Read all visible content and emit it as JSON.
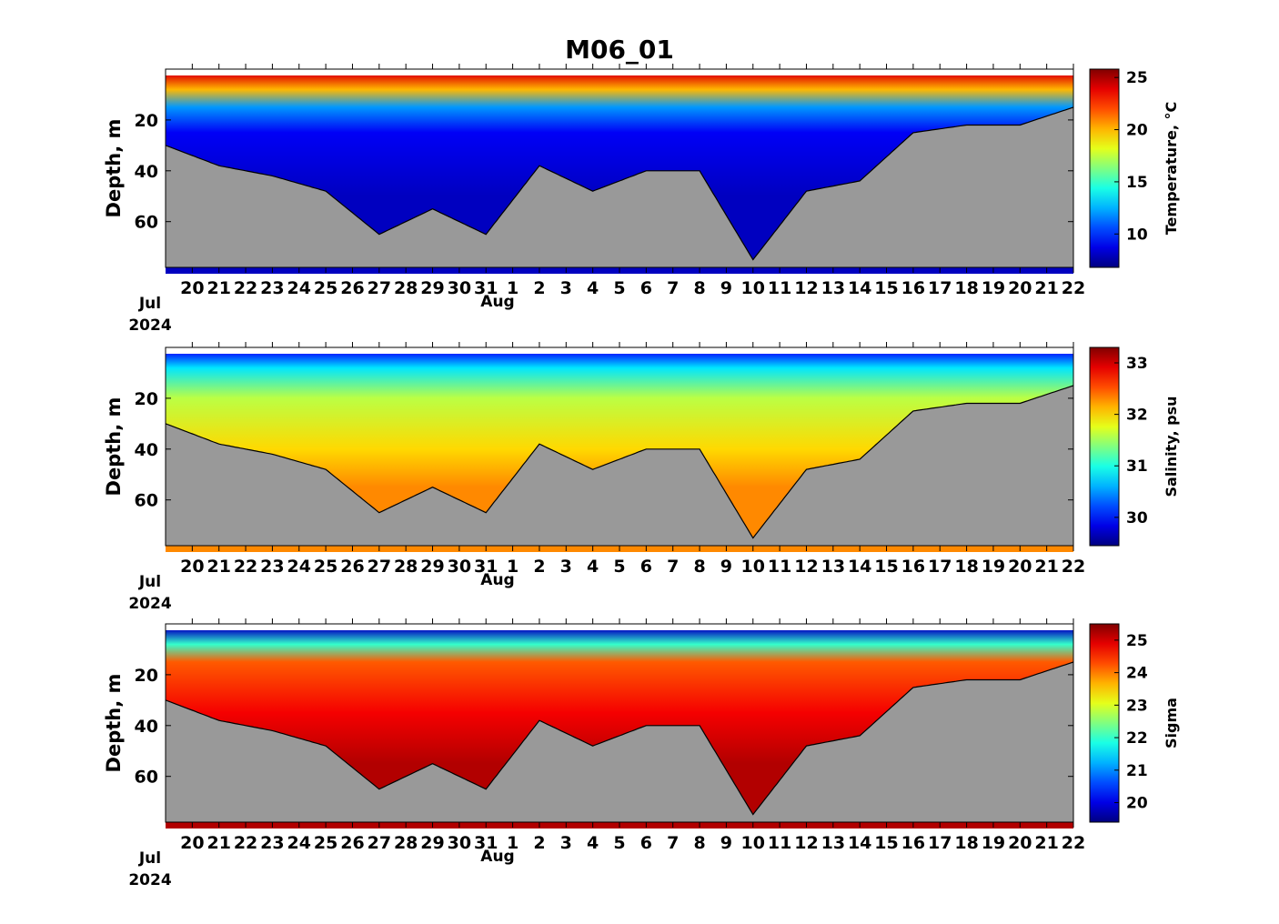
{
  "title": "M06_01",
  "x_tick_labels": [
    "20",
    "21",
    "22",
    "23",
    "24",
    "25",
    "26",
    "27",
    "28",
    "29",
    "30",
    "31",
    "1",
    "2",
    "3",
    "4",
    "5",
    "6",
    "7",
    "8",
    "9",
    "10",
    "11",
    "12",
    "13",
    "14",
    "15",
    "16",
    "17",
    "18",
    "19",
    "20",
    "21",
    "22"
  ],
  "month_labels": {
    "first": "Jul",
    "second": "Aug",
    "year": "2024"
  },
  "panels": [
    {
      "id": "temperature",
      "ylabel": "Depth, m",
      "cblabel": "Temperature, °C",
      "cb_ticks": [
        "25",
        "20",
        "15",
        "10"
      ]
    },
    {
      "id": "salinity",
      "ylabel": "Depth, m",
      "cblabel": "Salinity, psu",
      "cb_ticks": [
        "33",
        "32",
        "31",
        "30"
      ]
    },
    {
      "id": "sigma",
      "ylabel": "Depth, m",
      "cblabel": "Sigma",
      "cb_ticks": [
        "25",
        "24",
        "23",
        "22",
        "21",
        "20"
      ]
    }
  ],
  "chart_data": [
    {
      "type": "heatmap",
      "title": "M06_01",
      "variable": "Temperature",
      "ylabel": "Depth, m",
      "colorbar_label": "Temperature, °C",
      "colormap": "jet",
      "clim": [
        6.8,
        25.8
      ],
      "x_start": "Jul 19 2024",
      "x_end": "Aug 22 2024",
      "ylim": [
        78,
        0
      ],
      "y_ticks": [
        20,
        40,
        60
      ],
      "colorbar_ticks": [
        25,
        20,
        15,
        10
      ],
      "profile": [
        {
          "depth": 2,
          "value": 24
        },
        {
          "depth": 8,
          "value": 20
        },
        {
          "depth": 15,
          "value": 12
        },
        {
          "depth": 25,
          "value": 9
        },
        {
          "depth": 50,
          "value": 8
        }
      ],
      "bottom_depth": [
        {
          "date": "Jul 19",
          "depth": 30
        },
        {
          "date": "Jul 21",
          "depth": 38
        },
        {
          "date": "Jul 23",
          "depth": 42
        },
        {
          "date": "Jul 25",
          "depth": 48
        },
        {
          "date": "Jul 27",
          "depth": 65
        },
        {
          "date": "Jul 29",
          "depth": 55
        },
        {
          "date": "Jul 31",
          "depth": 65
        },
        {
          "date": "Aug 2",
          "depth": 38
        },
        {
          "date": "Aug 4",
          "depth": 48
        },
        {
          "date": "Aug 6",
          "depth": 40
        },
        {
          "date": "Aug 8",
          "depth": 40
        },
        {
          "date": "Aug 10",
          "depth": 75
        },
        {
          "date": "Aug 12",
          "depth": 48
        },
        {
          "date": "Aug 14",
          "depth": 44
        },
        {
          "date": "Aug 16",
          "depth": 25
        },
        {
          "date": "Aug 18",
          "depth": 22
        },
        {
          "date": "Aug 20",
          "depth": 22
        },
        {
          "date": "Aug 22",
          "depth": 15
        }
      ]
    },
    {
      "type": "heatmap",
      "variable": "Salinity",
      "ylabel": "Depth, m",
      "colorbar_label": "Salinity, psu",
      "colormap": "jet",
      "clim": [
        29.45,
        33.3
      ],
      "x_start": "Jul 19 2024",
      "x_end": "Aug 22 2024",
      "ylim": [
        78,
        0
      ],
      "y_ticks": [
        20,
        40,
        60
      ],
      "colorbar_ticks": [
        33,
        32,
        31,
        30
      ],
      "profile": [
        {
          "depth": 2,
          "value": 30.0
        },
        {
          "depth": 8,
          "value": 30.8
        },
        {
          "depth": 20,
          "value": 31.6
        },
        {
          "depth": 40,
          "value": 32.0
        },
        {
          "depth": 55,
          "value": 32.3
        }
      ]
    },
    {
      "type": "heatmap",
      "variable": "Sigma",
      "ylabel": "Depth, m",
      "colorbar_label": "Sigma",
      "colormap": "jet",
      "clim": [
        19.4,
        25.5
      ],
      "x_start": "Jul 19 2024",
      "x_end": "Aug 22 2024",
      "ylim": [
        78,
        0
      ],
      "y_ticks": [
        20,
        40,
        60
      ],
      "colorbar_ticks": [
        25,
        24,
        23,
        22,
        21,
        20
      ],
      "profile": [
        {
          "depth": 2,
          "value": 19.8
        },
        {
          "depth": 8,
          "value": 22.0
        },
        {
          "depth": 15,
          "value": 24.2
        },
        {
          "depth": 35,
          "value": 24.8
        },
        {
          "depth": 55,
          "value": 25.2
        }
      ]
    }
  ]
}
